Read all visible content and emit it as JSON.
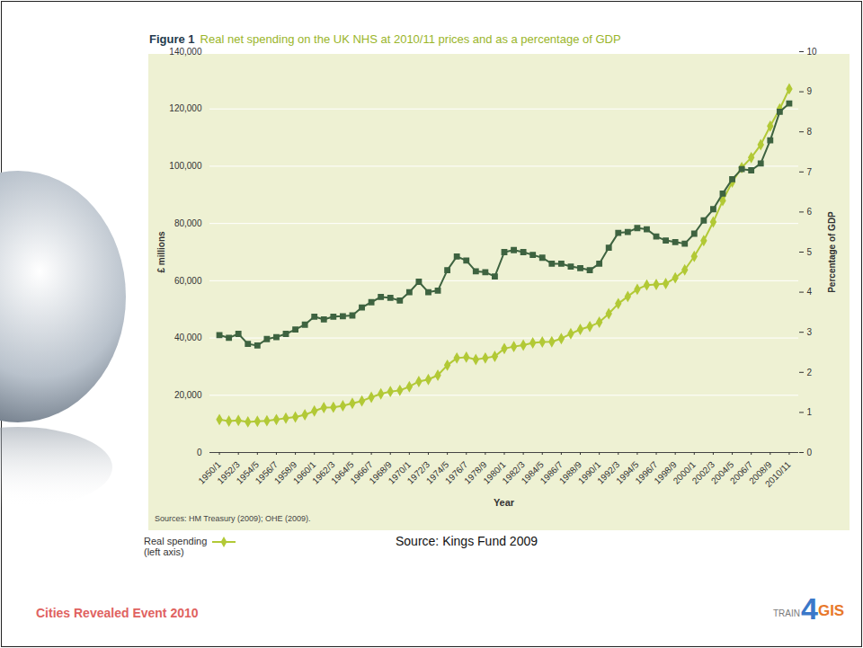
{
  "chart_data": {
    "type": "line",
    "title": "Figure 1 Real net spending on the UK NHS at 2010/11 prices and as a percentage of GDP",
    "x_label": "Year",
    "y_label": "£ millions",
    "y2_label": "Percentage of GDP",
    "source": "Sources: HM Treasury (2009); OHE (2009).",
    "categories": [
      "1950/1",
      null,
      "1952/3",
      null,
      "1954/5",
      null,
      "1956/7",
      null,
      "1958/9",
      null,
      "1960/1",
      null,
      "1962/3",
      null,
      "1964/5",
      null,
      "1966/7",
      null,
      "1968/9",
      null,
      "1970/1",
      null,
      "1972/3",
      null,
      "1974/5",
      null,
      "1976/7",
      null,
      "1978/9",
      null,
      "1980/1",
      null,
      "1982/3",
      null,
      "1984/5",
      null,
      "1986/7",
      null,
      "1988/9",
      null,
      "1990/1",
      null,
      "1992/3",
      null,
      "1994/5",
      null,
      "1996/7",
      null,
      "1998/9",
      null,
      "2000/1",
      null,
      "2002/3",
      null,
      "2004/5",
      null,
      "2006/7",
      null,
      "2008/9",
      null,
      "2010/11"
    ],
    "series": [
      {
        "name": "Real spending (left axis)",
        "color": "#b2c936",
        "marker": "diamond",
        "line_style": "solid",
        "values": [
          11500,
          11000,
          11200,
          10700,
          10900,
          11100,
          11500,
          12000,
          12400,
          13200,
          14500,
          15700,
          15800,
          16300,
          17200,
          18000,
          19300,
          20500,
          21300,
          21700,
          23000,
          24800,
          25500,
          27000,
          30500,
          33000,
          33300,
          32500,
          33000,
          33600,
          36300,
          37000,
          37500,
          38300,
          38600,
          38700,
          39800,
          41500,
          43000,
          44000,
          45500,
          48500,
          52000,
          54500,
          57000,
          58500,
          58700,
          59000,
          61000,
          63800,
          68500,
          74000,
          80500,
          88000,
          94500,
          99500,
          103000,
          107500,
          114000,
          120000,
          127000
        ]
      },
      {
        "color": "#3e6340",
        "marker": "square",
        "line_style": "solid",
        "axis": "y2",
        "values": [
          2.93,
          2.86,
          2.96,
          2.71,
          2.67,
          2.83,
          2.88,
          2.96,
          3.07,
          3.19,
          3.39,
          3.32,
          3.39,
          3.4,
          3.42,
          3.62,
          3.75,
          3.88,
          3.86,
          3.79,
          4.0,
          4.26,
          4.0,
          4.04,
          4.55,
          4.89,
          4.79,
          4.52,
          4.5,
          4.39,
          5.0,
          5.05,
          5.0,
          4.93,
          4.86,
          4.71,
          4.71,
          4.64,
          4.6,
          4.55,
          4.71,
          5.11,
          5.48,
          5.5,
          5.6,
          5.57,
          5.39,
          5.29,
          5.25,
          5.21,
          5.46,
          5.79,
          6.07,
          6.46,
          6.82,
          7.07,
          7.04,
          7.21,
          7.79,
          8.5,
          8.71
        ]
      }
    ],
    "ylim": [
      0,
      140000
    ],
    "yticks": [
      0,
      {
        "value": 20000,
        "label": "20,000"
      },
      {
        "value": 40000,
        "label": "40,000"
      },
      {
        "value": 60000,
        "label": "60,000"
      },
      {
        "value": 80000,
        "label": "80,000"
      },
      {
        "value": 100000,
        "label": "100,000"
      },
      {
        "value": 120000,
        "label": "120,000"
      },
      {
        "value": 140000,
        "label": "140,000"
      }
    ],
    "y2lim": [
      0,
      10
    ],
    "y2ticks": [
      0,
      1,
      2,
      3,
      4,
      5,
      6,
      7,
      8,
      9,
      10
    ],
    "grid": true,
    "legend": "bottom-left"
  },
  "slide": {
    "source": "Source: Kings Fund 2009",
    "event": "Cities Revealed Event 2010",
    "logo": [
      "TRAIN",
      "4",
      "GIS"
    ]
  }
}
